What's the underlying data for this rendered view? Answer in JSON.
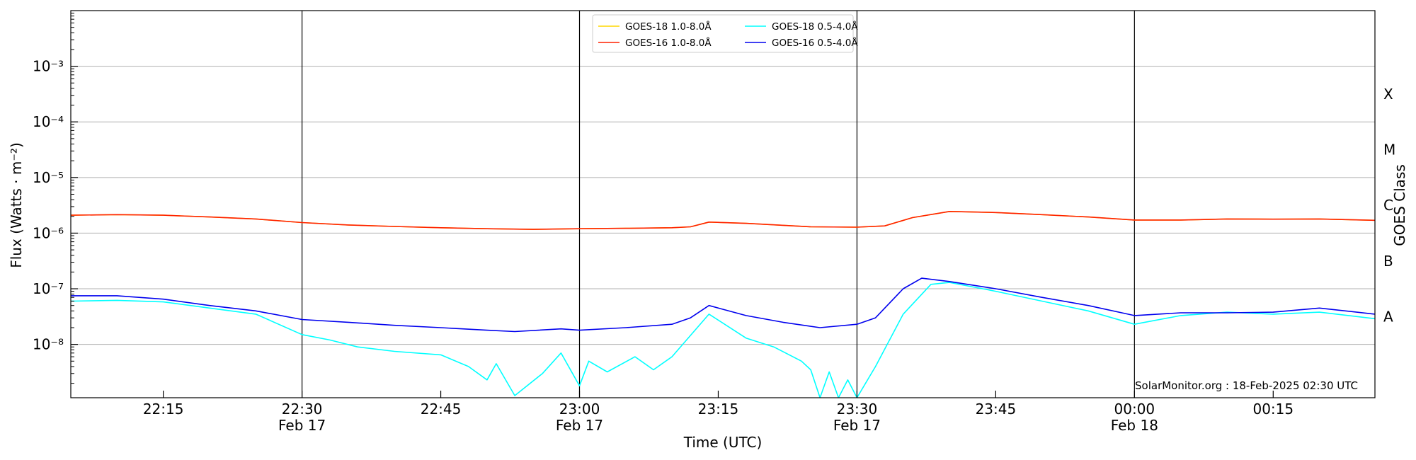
{
  "chart_data": {
    "type": "line",
    "xlabel": "Time (UTC)",
    "ylabel": "Flux (Watts · m⁻²)",
    "right_axis_label": "GOES Class",
    "y_scale": "log",
    "ylim": [
      1.1e-09,
      0.01
    ],
    "xlim": [
      "2025-02-17 22:05",
      "2025-02-18 00:26"
    ],
    "grid": "horizontal at decades",
    "legend_position": "top-center",
    "y_ticks": [
      {
        "value": 1e-08,
        "label": "10⁻⁸"
      },
      {
        "value": 1e-07,
        "label": "10⁻⁷"
      },
      {
        "value": 1e-06,
        "label": "10⁻⁶"
      },
      {
        "value": 1e-05,
        "label": "10⁻⁵"
      },
      {
        "value": 0.0001,
        "label": "10⁻⁴"
      },
      {
        "value": 0.001,
        "label": "10⁻³"
      }
    ],
    "x_ticks": [
      {
        "time": "2025-02-17 22:15",
        "label": "22:15",
        "sublabel": ""
      },
      {
        "time": "2025-02-17 22:30",
        "label": "22:30",
        "sublabel": "Feb 17"
      },
      {
        "time": "2025-02-17 22:45",
        "label": "22:45",
        "sublabel": ""
      },
      {
        "time": "2025-02-17 23:00",
        "label": "23:00",
        "sublabel": "Feb 17"
      },
      {
        "time": "2025-02-17 23:15",
        "label": "23:15",
        "sublabel": ""
      },
      {
        "time": "2025-02-17 23:30",
        "label": "23:30",
        "sublabel": "Feb 17"
      },
      {
        "time": "2025-02-17 23:45",
        "label": "23:45",
        "sublabel": ""
      },
      {
        "time": "2025-02-18 00:00",
        "label": "00:00",
        "sublabel": "Feb 18"
      },
      {
        "time": "2025-02-18 00:15",
        "label": "00:15",
        "sublabel": ""
      }
    ],
    "vertical_markers": [
      "2025-02-17 22:30",
      "2025-02-17 23:00",
      "2025-02-17 23:30",
      "2025-02-18 00:00"
    ],
    "goes_classes": [
      {
        "label": "A",
        "value": 3.16e-08
      },
      {
        "label": "B",
        "value": 3.16e-07
      },
      {
        "label": "C",
        "value": 3.16e-06
      },
      {
        "label": "M",
        "value": 3.16e-05
      },
      {
        "label": "X",
        "value": 0.000316
      }
    ],
    "legend_entries": [
      "GOES-18 1.0-8.0Å",
      "GOES-16 1.0-8.0Å",
      "GOES-18 0.5-4.0Å",
      "GOES-16 0.5-4.0Å"
    ],
    "annotation": "SolarMonitor.org : 18-Feb-2025 02:30 UTC",
    "series": [
      {
        "name": "GOES-18 1.0-8.0Å",
        "color": "#ffd700",
        "x": [
          "2025-02-17 22:05",
          "2025-02-17 22:10",
          "2025-02-17 22:15",
          "2025-02-17 22:20",
          "2025-02-17 22:25",
          "2025-02-17 22:30",
          "2025-02-17 22:35",
          "2025-02-17 22:40",
          "2025-02-17 22:45",
          "2025-02-17 22:50",
          "2025-02-17 22:55",
          "2025-02-17 23:00",
          "2025-02-17 23:05",
          "2025-02-17 23:10",
          "2025-02-17 23:12",
          "2025-02-17 23:14",
          "2025-02-17 23:18",
          "2025-02-17 23:25",
          "2025-02-17 23:30",
          "2025-02-17 23:33",
          "2025-02-17 23:36",
          "2025-02-17 23:40",
          "2025-02-17 23:45",
          "2025-02-17 23:50",
          "2025-02-17 23:55",
          "2025-02-18 00:00",
          "2025-02-18 00:05",
          "2025-02-18 00:10",
          "2025-02-18 00:15",
          "2025-02-18 00:20",
          "2025-02-18 00:26"
        ],
        "values": [
          2.1e-06,
          2.15e-06,
          2.1e-06,
          1.95e-06,
          1.8e-06,
          1.55e-06,
          1.4e-06,
          1.32e-06,
          1.25e-06,
          1.2e-06,
          1.17e-06,
          1.2e-06,
          1.22e-06,
          1.25e-06,
          1.3e-06,
          1.58e-06,
          1.5e-06,
          1.3e-06,
          1.28e-06,
          1.35e-06,
          1.9e-06,
          2.45e-06,
          2.35e-06,
          2.15e-06,
          1.95e-06,
          1.72e-06,
          1.72e-06,
          1.8e-06,
          1.78e-06,
          1.8e-06,
          1.7e-06
        ]
      },
      {
        "name": "GOES-16 1.0-8.0Å",
        "color": "#ff2000",
        "x": [
          "2025-02-17 22:05",
          "2025-02-17 22:10",
          "2025-02-17 22:15",
          "2025-02-17 22:20",
          "2025-02-17 22:25",
          "2025-02-17 22:30",
          "2025-02-17 22:35",
          "2025-02-17 22:40",
          "2025-02-17 22:45",
          "2025-02-17 22:50",
          "2025-02-17 22:55",
          "2025-02-17 23:00",
          "2025-02-17 23:05",
          "2025-02-17 23:10",
          "2025-02-17 23:12",
          "2025-02-17 23:14",
          "2025-02-17 23:18",
          "2025-02-17 23:25",
          "2025-02-17 23:30",
          "2025-02-17 23:33",
          "2025-02-17 23:36",
          "2025-02-17 23:40",
          "2025-02-17 23:45",
          "2025-02-17 23:50",
          "2025-02-17 23:55",
          "2025-02-18 00:00",
          "2025-02-18 00:05",
          "2025-02-18 00:10",
          "2025-02-18 00:15",
          "2025-02-18 00:20",
          "2025-02-18 00:26"
        ],
        "values": [
          2.1e-06,
          2.15e-06,
          2.1e-06,
          1.95e-06,
          1.8e-06,
          1.55e-06,
          1.4e-06,
          1.32e-06,
          1.25e-06,
          1.2e-06,
          1.17e-06,
          1.2e-06,
          1.22e-06,
          1.25e-06,
          1.3e-06,
          1.58e-06,
          1.5e-06,
          1.3e-06,
          1.28e-06,
          1.35e-06,
          1.9e-06,
          2.45e-06,
          2.35e-06,
          2.15e-06,
          1.95e-06,
          1.72e-06,
          1.72e-06,
          1.8e-06,
          1.78e-06,
          1.8e-06,
          1.7e-06
        ]
      },
      {
        "name": "GOES-18 0.5-4.0Å",
        "color": "#00ffff",
        "x": [
          "2025-02-17 22:05",
          "2025-02-17 22:10",
          "2025-02-17 22:15",
          "2025-02-17 22:20",
          "2025-02-17 22:25",
          "2025-02-17 22:30",
          "2025-02-17 22:33",
          "2025-02-17 22:36",
          "2025-02-17 22:40",
          "2025-02-17 22:45",
          "2025-02-17 22:48",
          "2025-02-17 22:50",
          "2025-02-17 22:51",
          "2025-02-17 22:53",
          "2025-02-17 22:56",
          "2025-02-17 22:58",
          "2025-02-17 23:00",
          "2025-02-17 23:01",
          "2025-02-17 23:03",
          "2025-02-17 23:06",
          "2025-02-17 23:08",
          "2025-02-17 23:10",
          "2025-02-17 23:14",
          "2025-02-17 23:18",
          "2025-02-17 23:21",
          "2025-02-17 23:24",
          "2025-02-17 23:25",
          "2025-02-17 23:26",
          "2025-02-17 23:27",
          "2025-02-17 23:28",
          "2025-02-17 23:29",
          "2025-02-17 23:30",
          "2025-02-17 23:32",
          "2025-02-17 23:35",
          "2025-02-17 23:38",
          "2025-02-17 23:40",
          "2025-02-17 23:45",
          "2025-02-17 23:50",
          "2025-02-17 23:55",
          "2025-02-18 00:00",
          "2025-02-18 00:05",
          "2025-02-18 00:10",
          "2025-02-18 00:15",
          "2025-02-18 00:20",
          "2025-02-18 00:26"
        ],
        "values": [
          6e-08,
          6.2e-08,
          5.8e-08,
          4.5e-08,
          3.5e-08,
          1.5e-08,
          1.2e-08,
          9e-09,
          7.5e-09,
          6.5e-09,
          4e-09,
          2.3e-09,
          4.5e-09,
          1.2e-09,
          3e-09,
          7e-09,
          1.8e-09,
          5e-09,
          3.2e-09,
          6e-09,
          3.5e-09,
          6e-09,
          3.5e-08,
          1.3e-08,
          9e-09,
          5e-09,
          3.5e-09,
          1.1e-09,
          3.2e-09,
          1.1e-09,
          2.3e-09,
          1.1e-09,
          4e-09,
          3.5e-08,
          1.2e-07,
          1.3e-07,
          9e-08,
          6e-08,
          4e-08,
          2.3e-08,
          3.3e-08,
          3.8e-08,
          3.5e-08,
          3.8e-08,
          2.9e-08
        ]
      },
      {
        "name": "GOES-16 0.5-4.0Å",
        "color": "#0000ee",
        "x": [
          "2025-02-17 22:05",
          "2025-02-17 22:10",
          "2025-02-17 22:15",
          "2025-02-17 22:20",
          "2025-02-17 22:25",
          "2025-02-17 22:30",
          "2025-02-17 22:35",
          "2025-02-17 22:40",
          "2025-02-17 22:45",
          "2025-02-17 22:50",
          "2025-02-17 22:53",
          "2025-02-17 22:58",
          "2025-02-17 23:00",
          "2025-02-17 23:05",
          "2025-02-17 23:10",
          "2025-02-17 23:12",
          "2025-02-17 23:14",
          "2025-02-17 23:18",
          "2025-02-17 23:22",
          "2025-02-17 23:26",
          "2025-02-17 23:30",
          "2025-02-17 23:32",
          "2025-02-17 23:35",
          "2025-02-17 23:37",
          "2025-02-17 23:40",
          "2025-02-17 23:45",
          "2025-02-17 23:50",
          "2025-02-17 23:55",
          "2025-02-18 00:00",
          "2025-02-18 00:05",
          "2025-02-18 00:10",
          "2025-02-18 00:15",
          "2025-02-18 00:20",
          "2025-02-18 00:26"
        ],
        "values": [
          7.5e-08,
          7.5e-08,
          6.5e-08,
          5e-08,
          4e-08,
          2.8e-08,
          2.5e-08,
          2.2e-08,
          2e-08,
          1.8e-08,
          1.7e-08,
          1.9e-08,
          1.8e-08,
          2e-08,
          2.3e-08,
          3e-08,
          5e-08,
          3.3e-08,
          2.5e-08,
          2e-08,
          2.3e-08,
          3e-08,
          1e-07,
          1.55e-07,
          1.35e-07,
          1e-07,
          7e-08,
          5e-08,
          3.3e-08,
          3.7e-08,
          3.7e-08,
          3.8e-08,
          4.5e-08,
          3.5e-08
        ]
      }
    ]
  }
}
